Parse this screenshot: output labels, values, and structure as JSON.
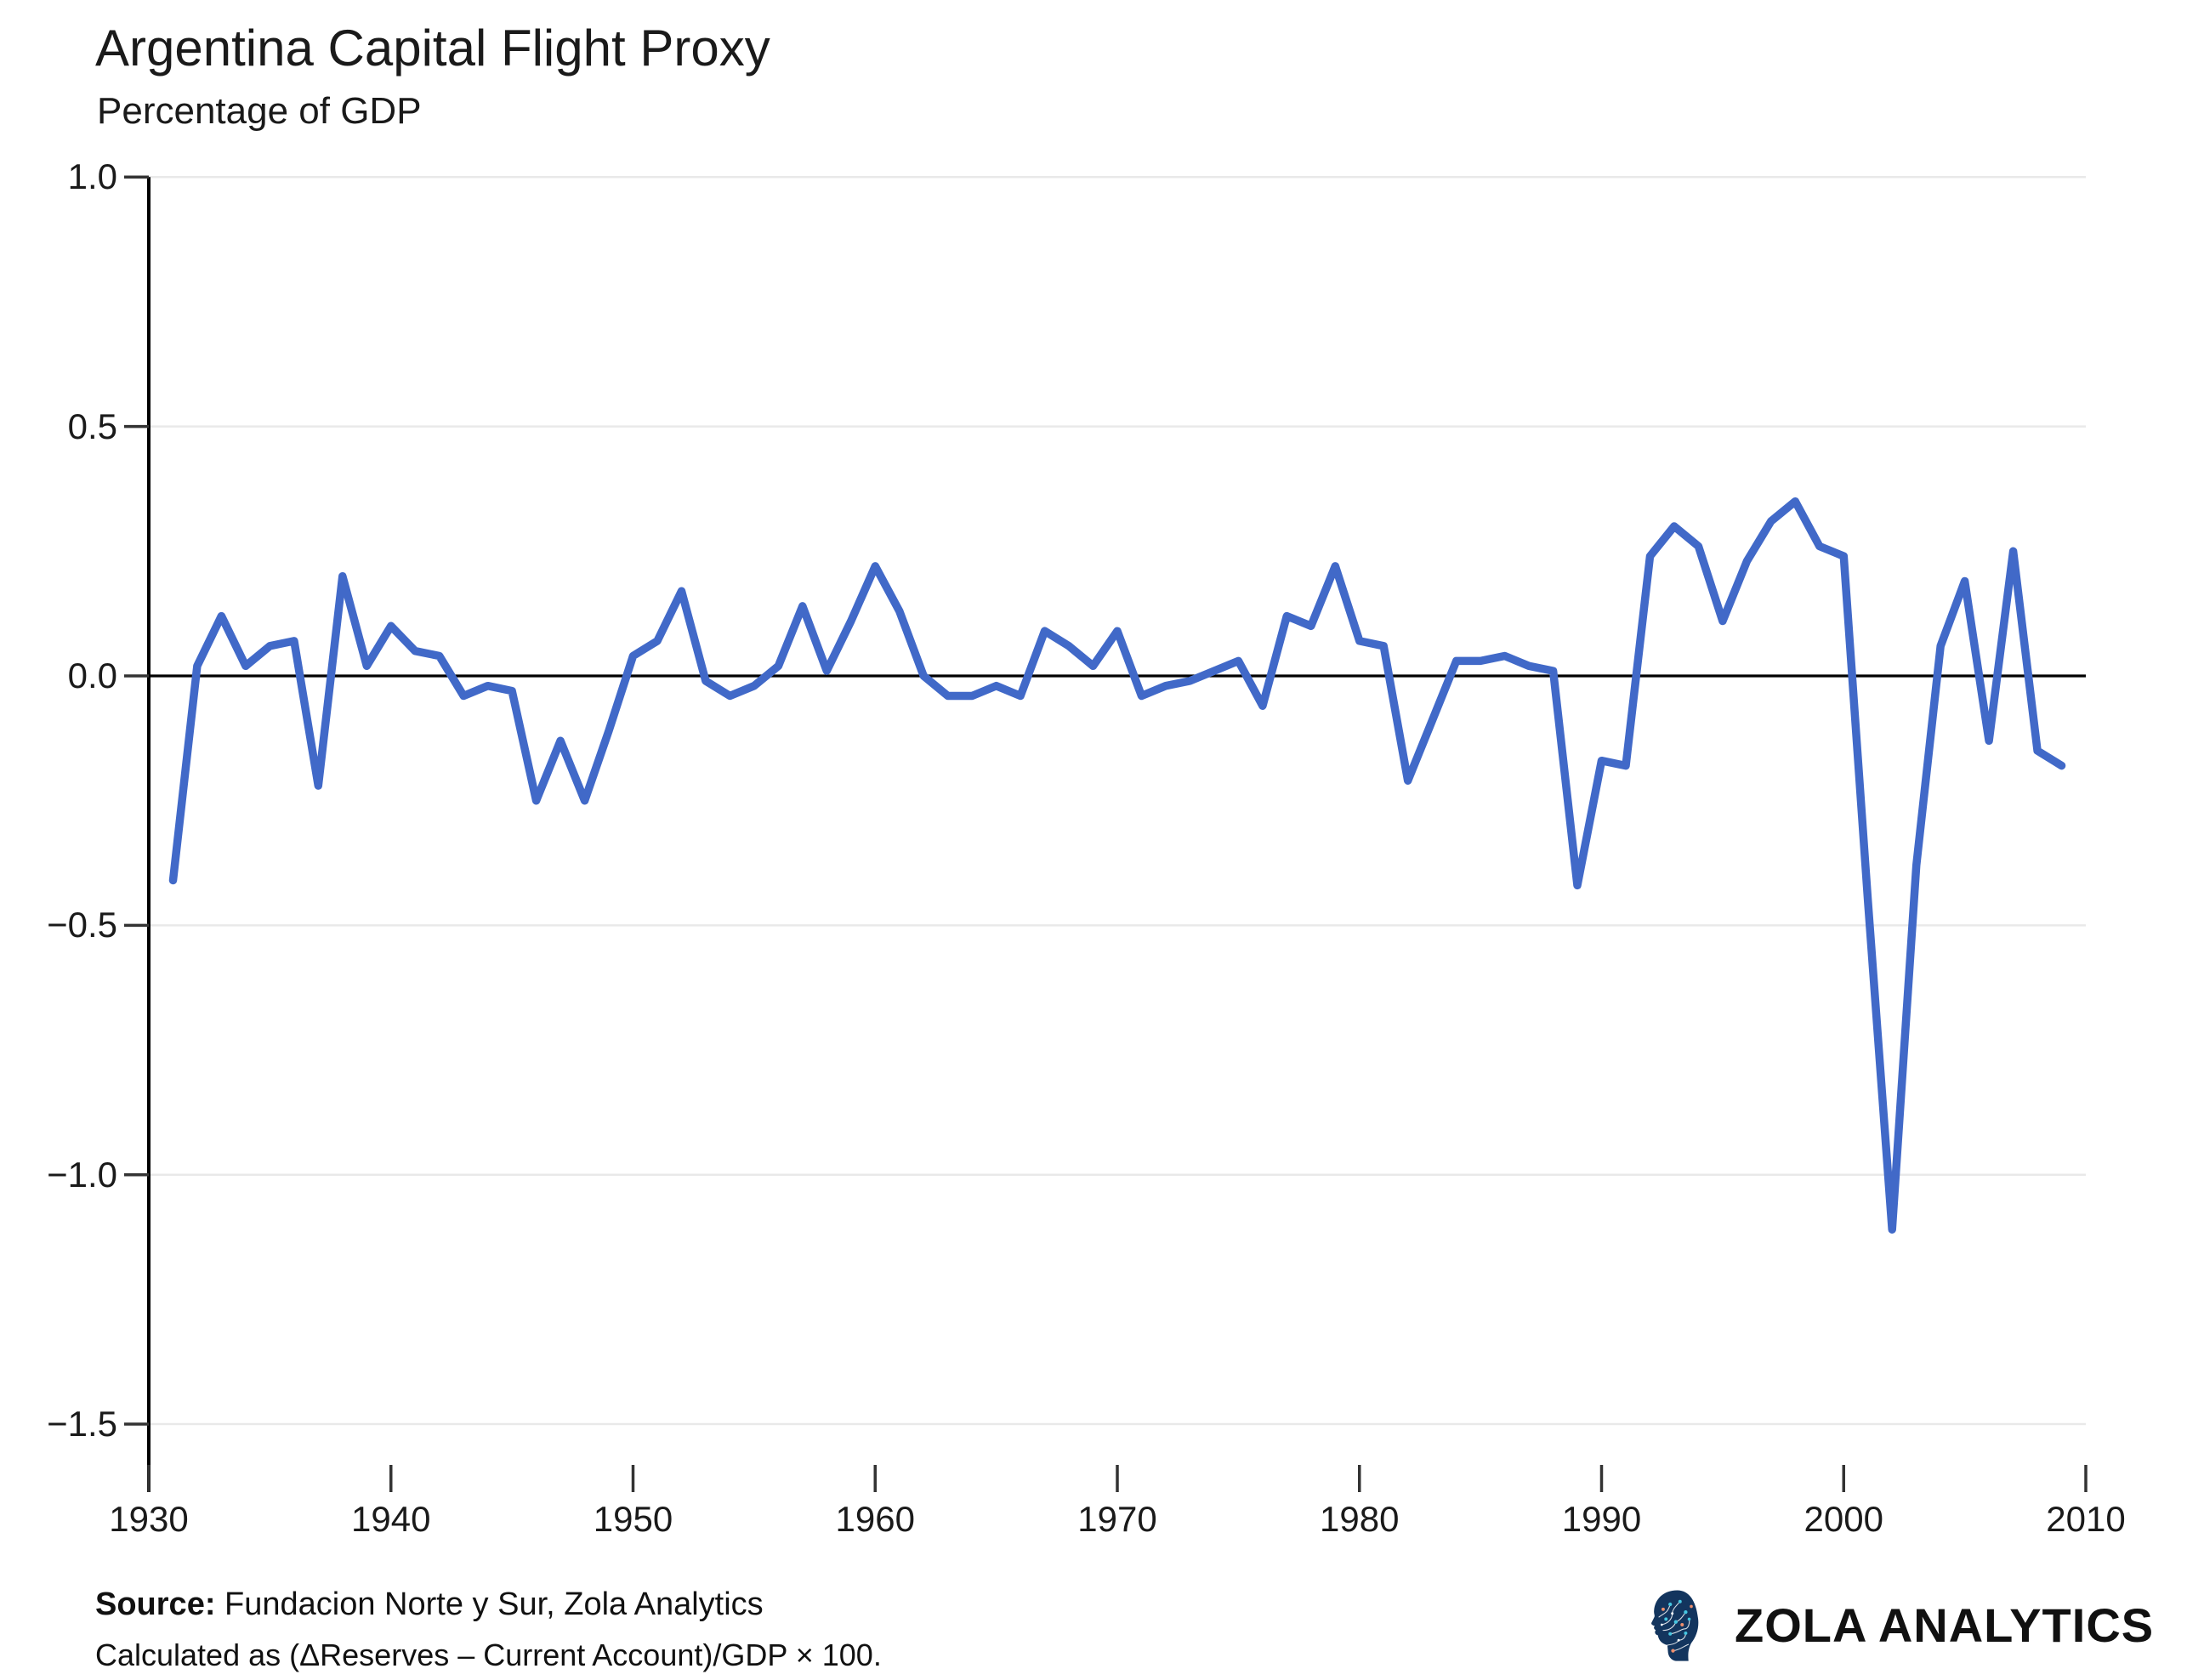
{
  "header": {
    "title": "Argentina Capital Flight Proxy",
    "subtitle": "Percentage of GDP"
  },
  "footer": {
    "source_label": "Source:",
    "source_text": " Fundacion Norte y Sur, Zola Analytics",
    "method_text": "Calculated as (ΔReserves – Current Account)/GDP × 100."
  },
  "brand": {
    "icon": "circuit-head-icon",
    "wordmark": "ZOLA ANALYTICS",
    "colors": {
      "navy": "#13355e",
      "cyan": "#45c6e0",
      "coral": "#ee8f6d",
      "trace": "#ffffff",
      "text": "#111111"
    }
  },
  "chart_data": {
    "type": "line",
    "title": "Argentina Capital Flight Proxy",
    "subtitle": "Percentage of GDP",
    "xlabel": "",
    "ylabel": "Percentage of GDP",
    "xlim": [
      1930,
      2010
    ],
    "ylim": [
      -1.5,
      1.0
    ],
    "x_ticks": [
      1930,
      1940,
      1950,
      1960,
      1970,
      1980,
      1990,
      2000,
      2010
    ],
    "y_ticks": [
      1.0,
      0.5,
      0.0,
      -0.5,
      -1.0,
      -1.5
    ],
    "y_tick_labels": [
      "1.0",
      "0.5",
      "0.0",
      "−0.5",
      "−1.0",
      "−1.5"
    ],
    "grid": "horizontal",
    "legend": "none",
    "zero_line": true,
    "line_color": "#4169c8",
    "zero_line_color": "#000000",
    "axis_color": "#000000",
    "grid_color": "#e9e9e9",
    "tick_color": "#333333",
    "label_color": "#1a1a1a",
    "years": [
      1931,
      1932,
      1933,
      1934,
      1935,
      1936,
      1937,
      1938,
      1939,
      1940,
      1941,
      1942,
      1943,
      1944,
      1945,
      1946,
      1947,
      1948,
      1949,
      1950,
      1951,
      1952,
      1953,
      1954,
      1955,
      1956,
      1957,
      1958,
      1959,
      1960,
      1961,
      1962,
      1963,
      1964,
      1965,
      1966,
      1967,
      1968,
      1969,
      1970,
      1971,
      1972,
      1973,
      1974,
      1975,
      1976,
      1977,
      1978,
      1979,
      1980,
      1981,
      1982,
      1983,
      1984,
      1985,
      1986,
      1987,
      1988,
      1989,
      1990,
      1991,
      1992,
      1993,
      1994,
      1995,
      1996,
      1997,
      1998,
      1999,
      2000,
      2001,
      2002,
      2003,
      2004,
      2005,
      2006,
      2007,
      2008,
      2009
    ],
    "values": [
      -0.41,
      0.02,
      0.12,
      0.02,
      0.06,
      0.07,
      -0.22,
      0.2,
      0.02,
      0.1,
      0.05,
      0.04,
      -0.04,
      -0.02,
      -0.03,
      -0.25,
      -0.13,
      -0.25,
      -0.11,
      0.04,
      0.07,
      0.17,
      -0.01,
      -0.04,
      -0.02,
      0.02,
      0.14,
      0.01,
      0.11,
      0.22,
      0.13,
      0.0,
      -0.04,
      -0.04,
      -0.02,
      -0.04,
      0.09,
      0.06,
      0.02,
      0.09,
      -0.04,
      -0.02,
      -0.01,
      0.01,
      0.03,
      -0.06,
      0.12,
      0.1,
      0.22,
      0.07,
      0.06,
      -0.21,
      -0.09,
      0.03,
      0.03,
      0.04,
      0.02,
      0.01,
      -0.42,
      -0.17,
      -0.18,
      0.24,
      0.3,
      0.26,
      0.11,
      0.23,
      0.31,
      0.35,
      0.26,
      0.24,
      -0.45,
      -1.11,
      -0.38,
      0.06,
      0.19,
      -0.13,
      0.25,
      -0.15,
      -0.18
    ]
  }
}
